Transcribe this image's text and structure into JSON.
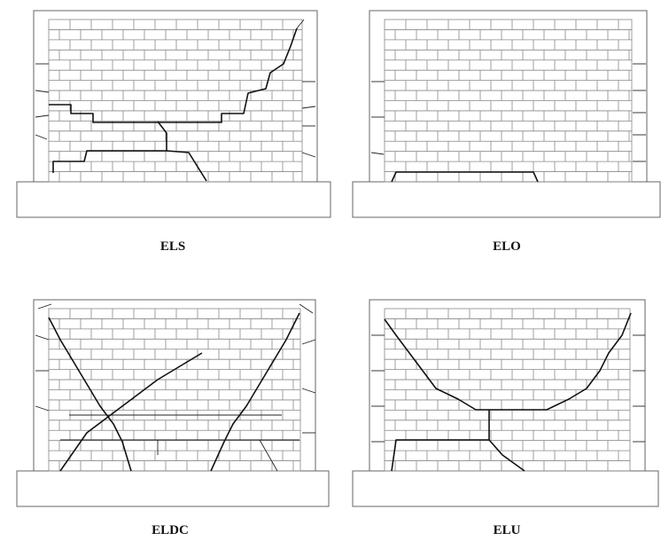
{
  "panels": [
    {
      "label": "ELS"
    },
    {
      "label": "ELO"
    },
    {
      "label": "ELDC"
    },
    {
      "label": "ELU"
    }
  ]
}
